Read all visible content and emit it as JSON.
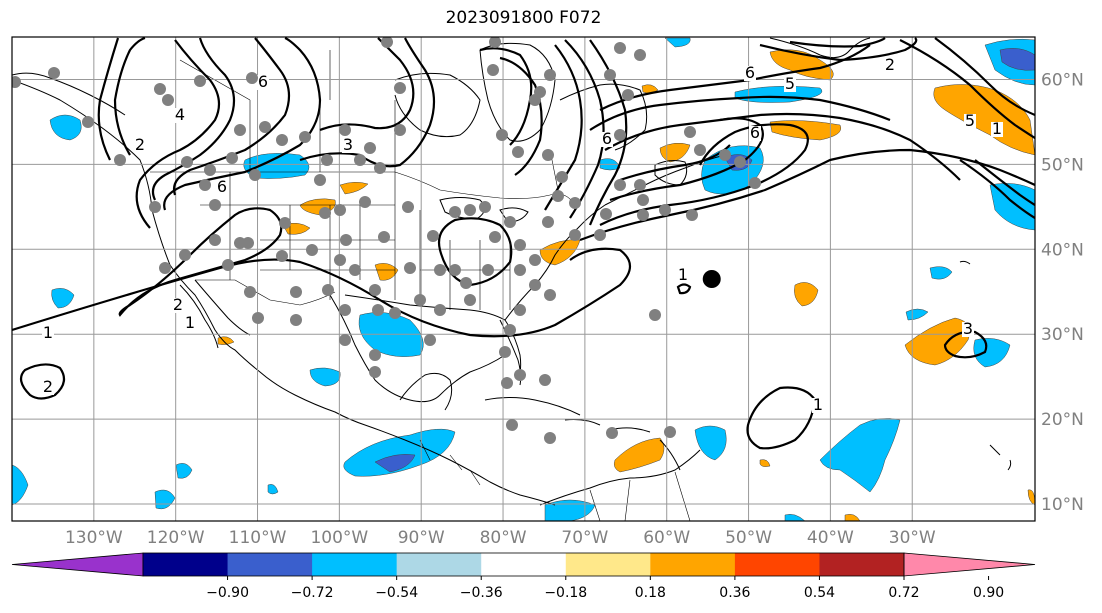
{
  "title": "2023091800 F072",
  "map": {
    "lon_range": [
      -140,
      -15
    ],
    "lat_range": [
      8,
      65
    ],
    "lon_ticks": [
      "130°W",
      "120°W",
      "110°W",
      "100°W",
      "90°W",
      "80°W",
      "70°W",
      "60°W",
      "50°W",
      "40°W",
      "30°W"
    ],
    "lat_ticks": [
      "60°N",
      "50°N",
      "40°N",
      "30°N",
      "20°N",
      "10°N"
    ],
    "grid": true,
    "projection": "PlateCarree",
    "observation_marker_color": "#808080",
    "highlight_marker_color": "#000000",
    "highlight_marker": {
      "lon": -54.5,
      "lat": 36.5
    },
    "contour_labels": [
      "1",
      "1",
      "2",
      "2",
      "2",
      "3",
      "4",
      "5",
      "5",
      "6",
      "6",
      "6",
      "6",
      "6",
      "1",
      "1",
      "1",
      "3",
      "2"
    ]
  },
  "colorbar": {
    "ticks": [
      "−0.90",
      "−0.72",
      "−0.54",
      "−0.36",
      "−0.18",
      "0.18",
      "0.36",
      "0.54",
      "0.72",
      "0.90"
    ],
    "colors": [
      "#9932cc",
      "#00008b",
      "#3a5fcd",
      "#00bfff",
      "#add8e6",
      "#ffffff",
      "#ffe88a",
      "#ffa500",
      "#ff4500",
      "#b22222",
      "#ff88aa"
    ],
    "extend": "both"
  }
}
